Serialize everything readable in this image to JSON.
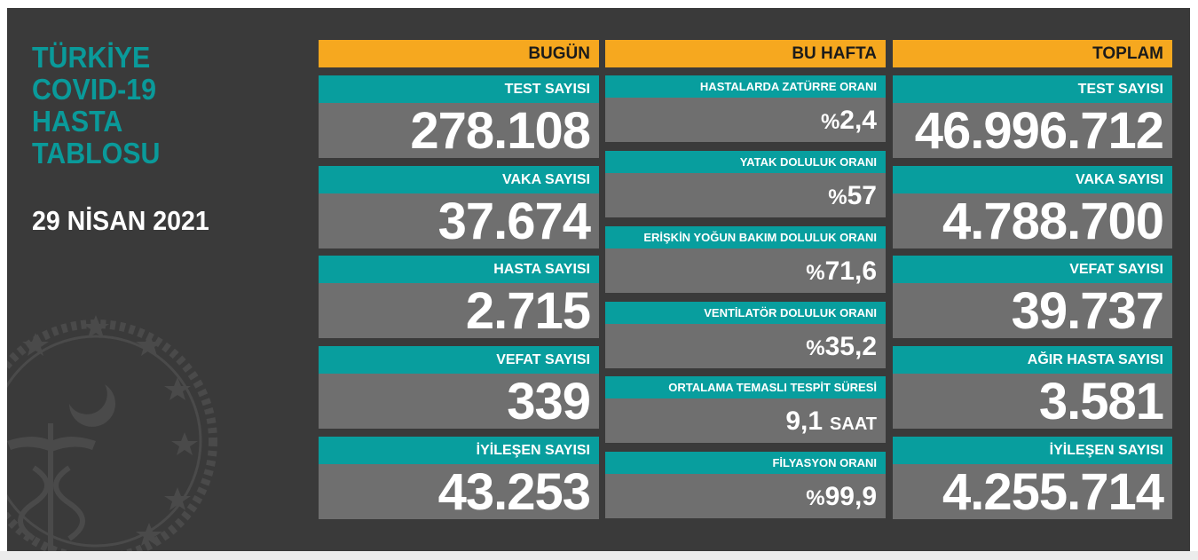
{
  "title_lines": [
    "TÜRKİYE",
    "COVID-19",
    "HASTA",
    "TABLOSU"
  ],
  "date": "29 NİSAN 2021",
  "colors": {
    "board": "#3a3a3a",
    "teal": "#089e9e",
    "orange": "#f6a81f",
    "value_bg": "#6f6f6f",
    "title": "#0a9a9a"
  },
  "emblem_icon": "ministry-of-health-emblem",
  "today": {
    "header": "BUGÜN",
    "cards": [
      {
        "label": "TEST SAYISI",
        "value": "278.108"
      },
      {
        "label": "VAKA SAYISI",
        "value": "37.674"
      },
      {
        "label": "HASTA SAYISI",
        "value": "2.715"
      },
      {
        "label": "VEFAT SAYISI",
        "value": "339"
      },
      {
        "label": "İYİLEŞEN SAYISI",
        "value": "43.253"
      }
    ]
  },
  "week": {
    "header": "BU HAFTA",
    "cards": [
      {
        "label": "HASTALARDA ZATÜRRE ORANI",
        "prefix": "%",
        "value": "2,4",
        "unit": ""
      },
      {
        "label": "YATAK DOLULUK ORANI",
        "prefix": "%",
        "value": "57",
        "unit": ""
      },
      {
        "label": "ERİŞKİN YOĞUN BAKIM DOLULUK ORANI",
        "prefix": "%",
        "value": "71,6",
        "unit": ""
      },
      {
        "label": "VENTİLATÖR DOLULUK ORANI",
        "prefix": "%",
        "value": "35,2",
        "unit": ""
      },
      {
        "label": "ORTALAMA TEMASLI TESPİT SÜRESİ",
        "prefix": "",
        "value": "9,1",
        "unit": "SAAT"
      },
      {
        "label": "FİLYASYON ORANI",
        "prefix": "%",
        "value": "99,9",
        "unit": ""
      }
    ]
  },
  "total": {
    "header": "TOPLAM",
    "cards": [
      {
        "label": "TEST SAYISI",
        "value": "46.996.712"
      },
      {
        "label": "VAKA SAYISI",
        "value": "4.788.700"
      },
      {
        "label": "VEFAT SAYISI",
        "value": "39.737"
      },
      {
        "label": "AĞIR HASTA SAYISI",
        "value": "3.581"
      },
      {
        "label": "İYİLEŞEN SAYISI",
        "value": "4.255.714"
      }
    ]
  }
}
